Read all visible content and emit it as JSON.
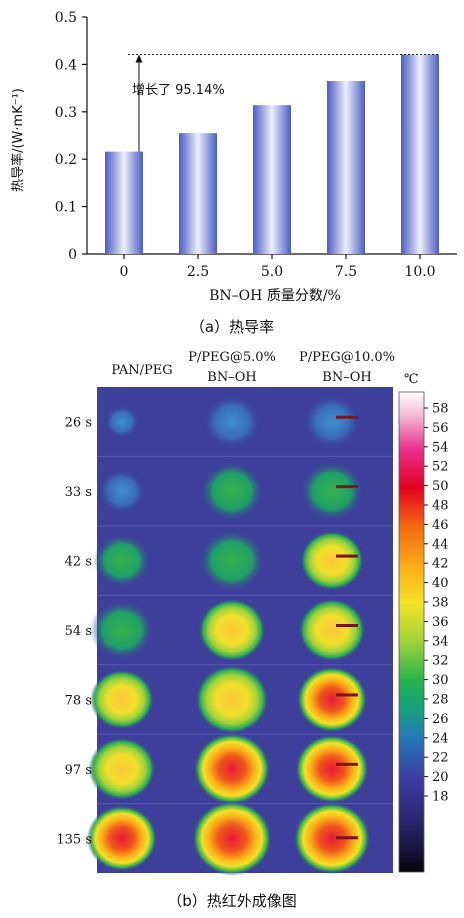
{
  "chart_a": {
    "caption": "（a）热导率",
    "chart_data": {
      "type": "bar",
      "categories": [
        "0",
        "2.5",
        "5.0",
        "7.5",
        "10.0"
      ],
      "values": [
        0.216,
        0.255,
        0.314,
        0.365,
        0.421
      ],
      "xlabel": "BN–OH 质量分数/%",
      "ylabel": "热导率/(W·mK⁻¹)",
      "ylim": [
        0,
        0.5
      ],
      "yticks": [
        "0",
        "0.1",
        "0.2",
        "0.3",
        "0.4",
        "0.5"
      ],
      "annotation": "增长了 95.14%",
      "grid": false
    }
  },
  "chart_b": {
    "caption": "（b）热红外成像图",
    "columns": [
      {
        "line1": "PAN/PEG",
        "line2": ""
      },
      {
        "line1": "P/PEG@5.0%",
        "line2": "BN–OH"
      },
      {
        "line1": "P/PEG@10.0%",
        "line2": "BN–OH"
      }
    ],
    "rows": [
      "26 s",
      "33 s",
      "42 s",
      "54 s",
      "78 s",
      "97 s",
      "135 s"
    ],
    "colorbar": {
      "unit": "℃",
      "ticks": [
        "58",
        "56",
        "54",
        "52",
        "50",
        "48",
        "46",
        "44",
        "42",
        "40",
        "38",
        "36",
        "34",
        "32",
        "30",
        "28",
        "26",
        "24",
        "22",
        "20",
        "18"
      ]
    },
    "background_color": "#3d3f9a"
  }
}
